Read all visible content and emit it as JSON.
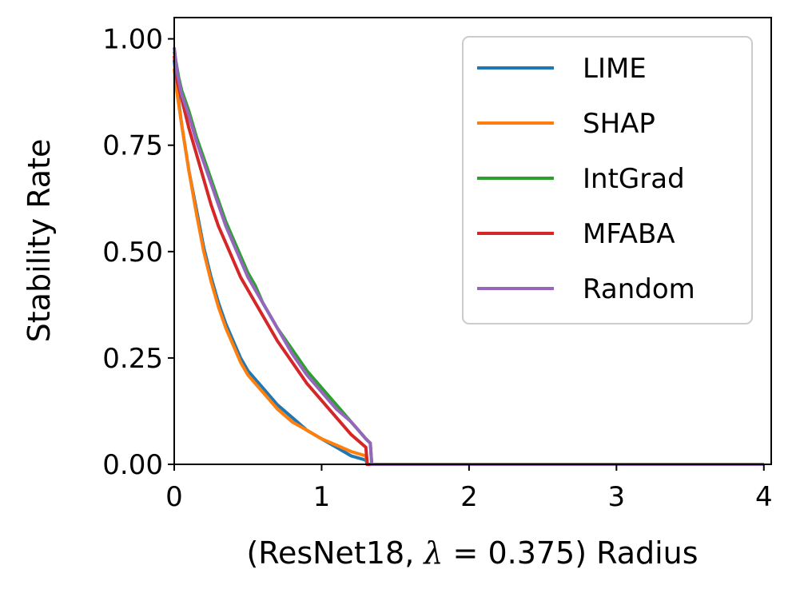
{
  "chart_data": {
    "type": "line",
    "xlabel_prefix": "(ResNet18, ",
    "xlabel_lambda": "λ",
    "xlabel_value": " = 0.375) Radius",
    "ylabel": "Stability Rate",
    "xlim": [
      0,
      4.05
    ],
    "ylim": [
      0,
      1.05
    ],
    "xticks": [
      0,
      1,
      2,
      3,
      4
    ],
    "xtick_labels": [
      "0",
      "1",
      "2",
      "3",
      "4"
    ],
    "yticks": [
      0,
      0.25,
      0.5,
      0.75,
      1.0
    ],
    "ytick_labels": [
      "0.00",
      "0.25",
      "0.50",
      "0.75",
      "1.00"
    ],
    "grid": false,
    "legend_position": "top-right",
    "series": [
      {
        "name": "LIME",
        "color": "#1f77b4",
        "x": [
          0,
          0.02,
          0.05,
          0.1,
          0.15,
          0.2,
          0.25,
          0.3,
          0.35,
          0.4,
          0.45,
          0.5,
          0.55,
          0.6,
          0.7,
          0.8,
          0.9,
          1.0,
          1.1,
          1.2,
          1.3,
          1.31,
          4.0
        ],
        "y": [
          0.95,
          0.88,
          0.8,
          0.69,
          0.6,
          0.51,
          0.44,
          0.38,
          0.33,
          0.29,
          0.25,
          0.22,
          0.2,
          0.18,
          0.14,
          0.11,
          0.08,
          0.06,
          0.04,
          0.02,
          0.01,
          0.0,
          0.0
        ]
      },
      {
        "name": "SHAP",
        "color": "#ff7f0e",
        "x": [
          0,
          0.02,
          0.05,
          0.1,
          0.15,
          0.2,
          0.25,
          0.3,
          0.35,
          0.4,
          0.45,
          0.5,
          0.55,
          0.6,
          0.7,
          0.8,
          0.9,
          1.0,
          1.1,
          1.2,
          1.3,
          1.31,
          4.0
        ],
        "y": [
          0.93,
          0.87,
          0.8,
          0.69,
          0.59,
          0.5,
          0.43,
          0.37,
          0.32,
          0.28,
          0.24,
          0.21,
          0.19,
          0.17,
          0.13,
          0.1,
          0.08,
          0.06,
          0.045,
          0.03,
          0.02,
          0.0,
          0.0
        ]
      },
      {
        "name": "IntGrad",
        "color": "#2ca02c",
        "x": [
          0,
          0.03,
          0.05,
          0.1,
          0.15,
          0.2,
          0.25,
          0.3,
          0.35,
          0.4,
          0.45,
          0.5,
          0.55,
          0.6,
          0.7,
          0.8,
          0.9,
          1.0,
          1.1,
          1.2,
          1.25,
          1.3,
          1.33,
          1.34,
          4.0
        ],
        "y": [
          0.97,
          0.91,
          0.88,
          0.83,
          0.77,
          0.72,
          0.67,
          0.62,
          0.57,
          0.53,
          0.49,
          0.45,
          0.42,
          0.38,
          0.32,
          0.27,
          0.22,
          0.18,
          0.14,
          0.1,
          0.08,
          0.06,
          0.05,
          0.0,
          0.0
        ]
      },
      {
        "name": "MFABA",
        "color": "#d62728",
        "x": [
          0,
          0.02,
          0.05,
          0.1,
          0.15,
          0.2,
          0.25,
          0.3,
          0.35,
          0.4,
          0.45,
          0.5,
          0.55,
          0.6,
          0.7,
          0.8,
          0.9,
          1.0,
          1.1,
          1.2,
          1.3,
          1.31,
          4.0
        ],
        "y": [
          0.96,
          0.9,
          0.86,
          0.79,
          0.73,
          0.67,
          0.61,
          0.56,
          0.52,
          0.48,
          0.44,
          0.41,
          0.38,
          0.35,
          0.29,
          0.24,
          0.19,
          0.15,
          0.11,
          0.07,
          0.04,
          0.0,
          0.0
        ]
      },
      {
        "name": "Random",
        "color": "#9467bd",
        "x": [
          0,
          0.02,
          0.05,
          0.1,
          0.15,
          0.2,
          0.25,
          0.3,
          0.35,
          0.4,
          0.45,
          0.5,
          0.55,
          0.6,
          0.7,
          0.8,
          0.9,
          1.0,
          1.1,
          1.2,
          1.25,
          1.3,
          1.33,
          1.34,
          4.0
        ],
        "y": [
          0.98,
          0.92,
          0.87,
          0.82,
          0.76,
          0.71,
          0.66,
          0.61,
          0.56,
          0.52,
          0.48,
          0.44,
          0.41,
          0.38,
          0.32,
          0.26,
          0.21,
          0.17,
          0.13,
          0.1,
          0.08,
          0.06,
          0.05,
          0.0,
          0.0
        ]
      }
    ]
  }
}
